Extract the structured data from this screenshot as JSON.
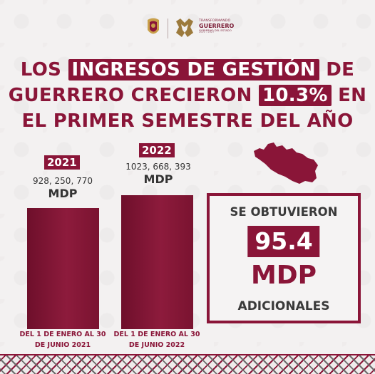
{
  "header": {
    "logo_line1": "TRANSFORMANDO",
    "logo_line2": "GUERRERO",
    "logo_line3": "GOBIERNO DEL ESTADO",
    "logo_line4": "2021 - 2027"
  },
  "headline": {
    "line1_a": "LOS",
    "line1_hl": "INGRESOS DE GESTIÓN",
    "line1_b": "DE",
    "line2_a": "GUERRERO CRECIERON",
    "line2_hl": "10.3%",
    "line2_b": "EN",
    "line3": "EL PRIMER SEMESTRE DEL AÑO"
  },
  "bars": [
    {
      "year": "2021",
      "amount": "928, 250, 770",
      "unit": "MDP",
      "period_line1": "DEL 1 DE ENERO AL 30",
      "period_line2": "DE JUNIO 2021",
      "value": 928250770
    },
    {
      "year": "2022",
      "amount": "1023, 668, 393",
      "unit": "MDP",
      "period_line1": "DEL 1 DE ENERO AL 30",
      "period_line2": "DE JUNIO 2022",
      "value": 1023668393
    }
  ],
  "summary": {
    "line1": "SE OBTUVIERON",
    "number": "95.4",
    "unit": "MDP",
    "line2": "ADICIONALES"
  },
  "colors": {
    "accent": "#8a1538",
    "background": "#f3f1f1",
    "text": "#333333"
  }
}
